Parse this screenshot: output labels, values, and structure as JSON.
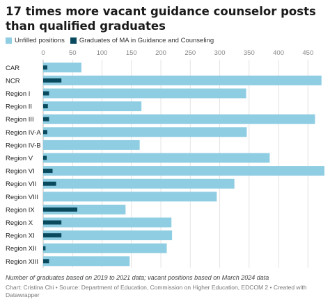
{
  "header": {
    "title": "17 times more vacant guidance counselor posts than qualified graduates"
  },
  "legend": {
    "items": [
      {
        "label": "Unfilled positions",
        "color": "#8fcde2"
      },
      {
        "label": "Graduates of MA in Guidance and Counseling",
        "color": "#0a4a5e"
      }
    ]
  },
  "footer": {
    "note": "Number of graduates based on 2019 to 2021 data; vacant positions based on March 2024 data",
    "credit": "Chart: Cristina Chi • Source: Department of Education, Commission on Higher Education, EDCOM 2 • Created with Datawrapper"
  },
  "chart_data": {
    "type": "bar",
    "orientation": "horizontal",
    "categories": [
      "CAR",
      "NCR",
      "Region I",
      "Region II",
      "Region III",
      "Region IV-A",
      "Region IV-B",
      "Region V",
      "Region VI",
      "Region VII",
      "Region VIII",
      "Region IX",
      "Region X",
      "Region XI",
      "Region XII",
      "Region XIII"
    ],
    "series": [
      {
        "name": "Unfilled positions",
        "color": "#8fcde2",
        "values": [
          65,
          473,
          345,
          167,
          462,
          346,
          164,
          385,
          478,
          325,
          295,
          140,
          218,
          219,
          210,
          147
        ]
      },
      {
        "name": "Graduates of MA in Guidance and Counseling",
        "color": "#0a4a5e",
        "values": [
          7,
          31,
          10,
          8,
          10,
          7,
          0,
          6,
          16,
          22,
          0,
          58,
          31,
          31,
          4,
          10
        ]
      }
    ],
    "xlim": [
      0,
      478
    ],
    "xticks": [
      0,
      50,
      100,
      150,
      200,
      250,
      300,
      350,
      400,
      450
    ],
    "grid": true,
    "legend_position": "top-left"
  }
}
